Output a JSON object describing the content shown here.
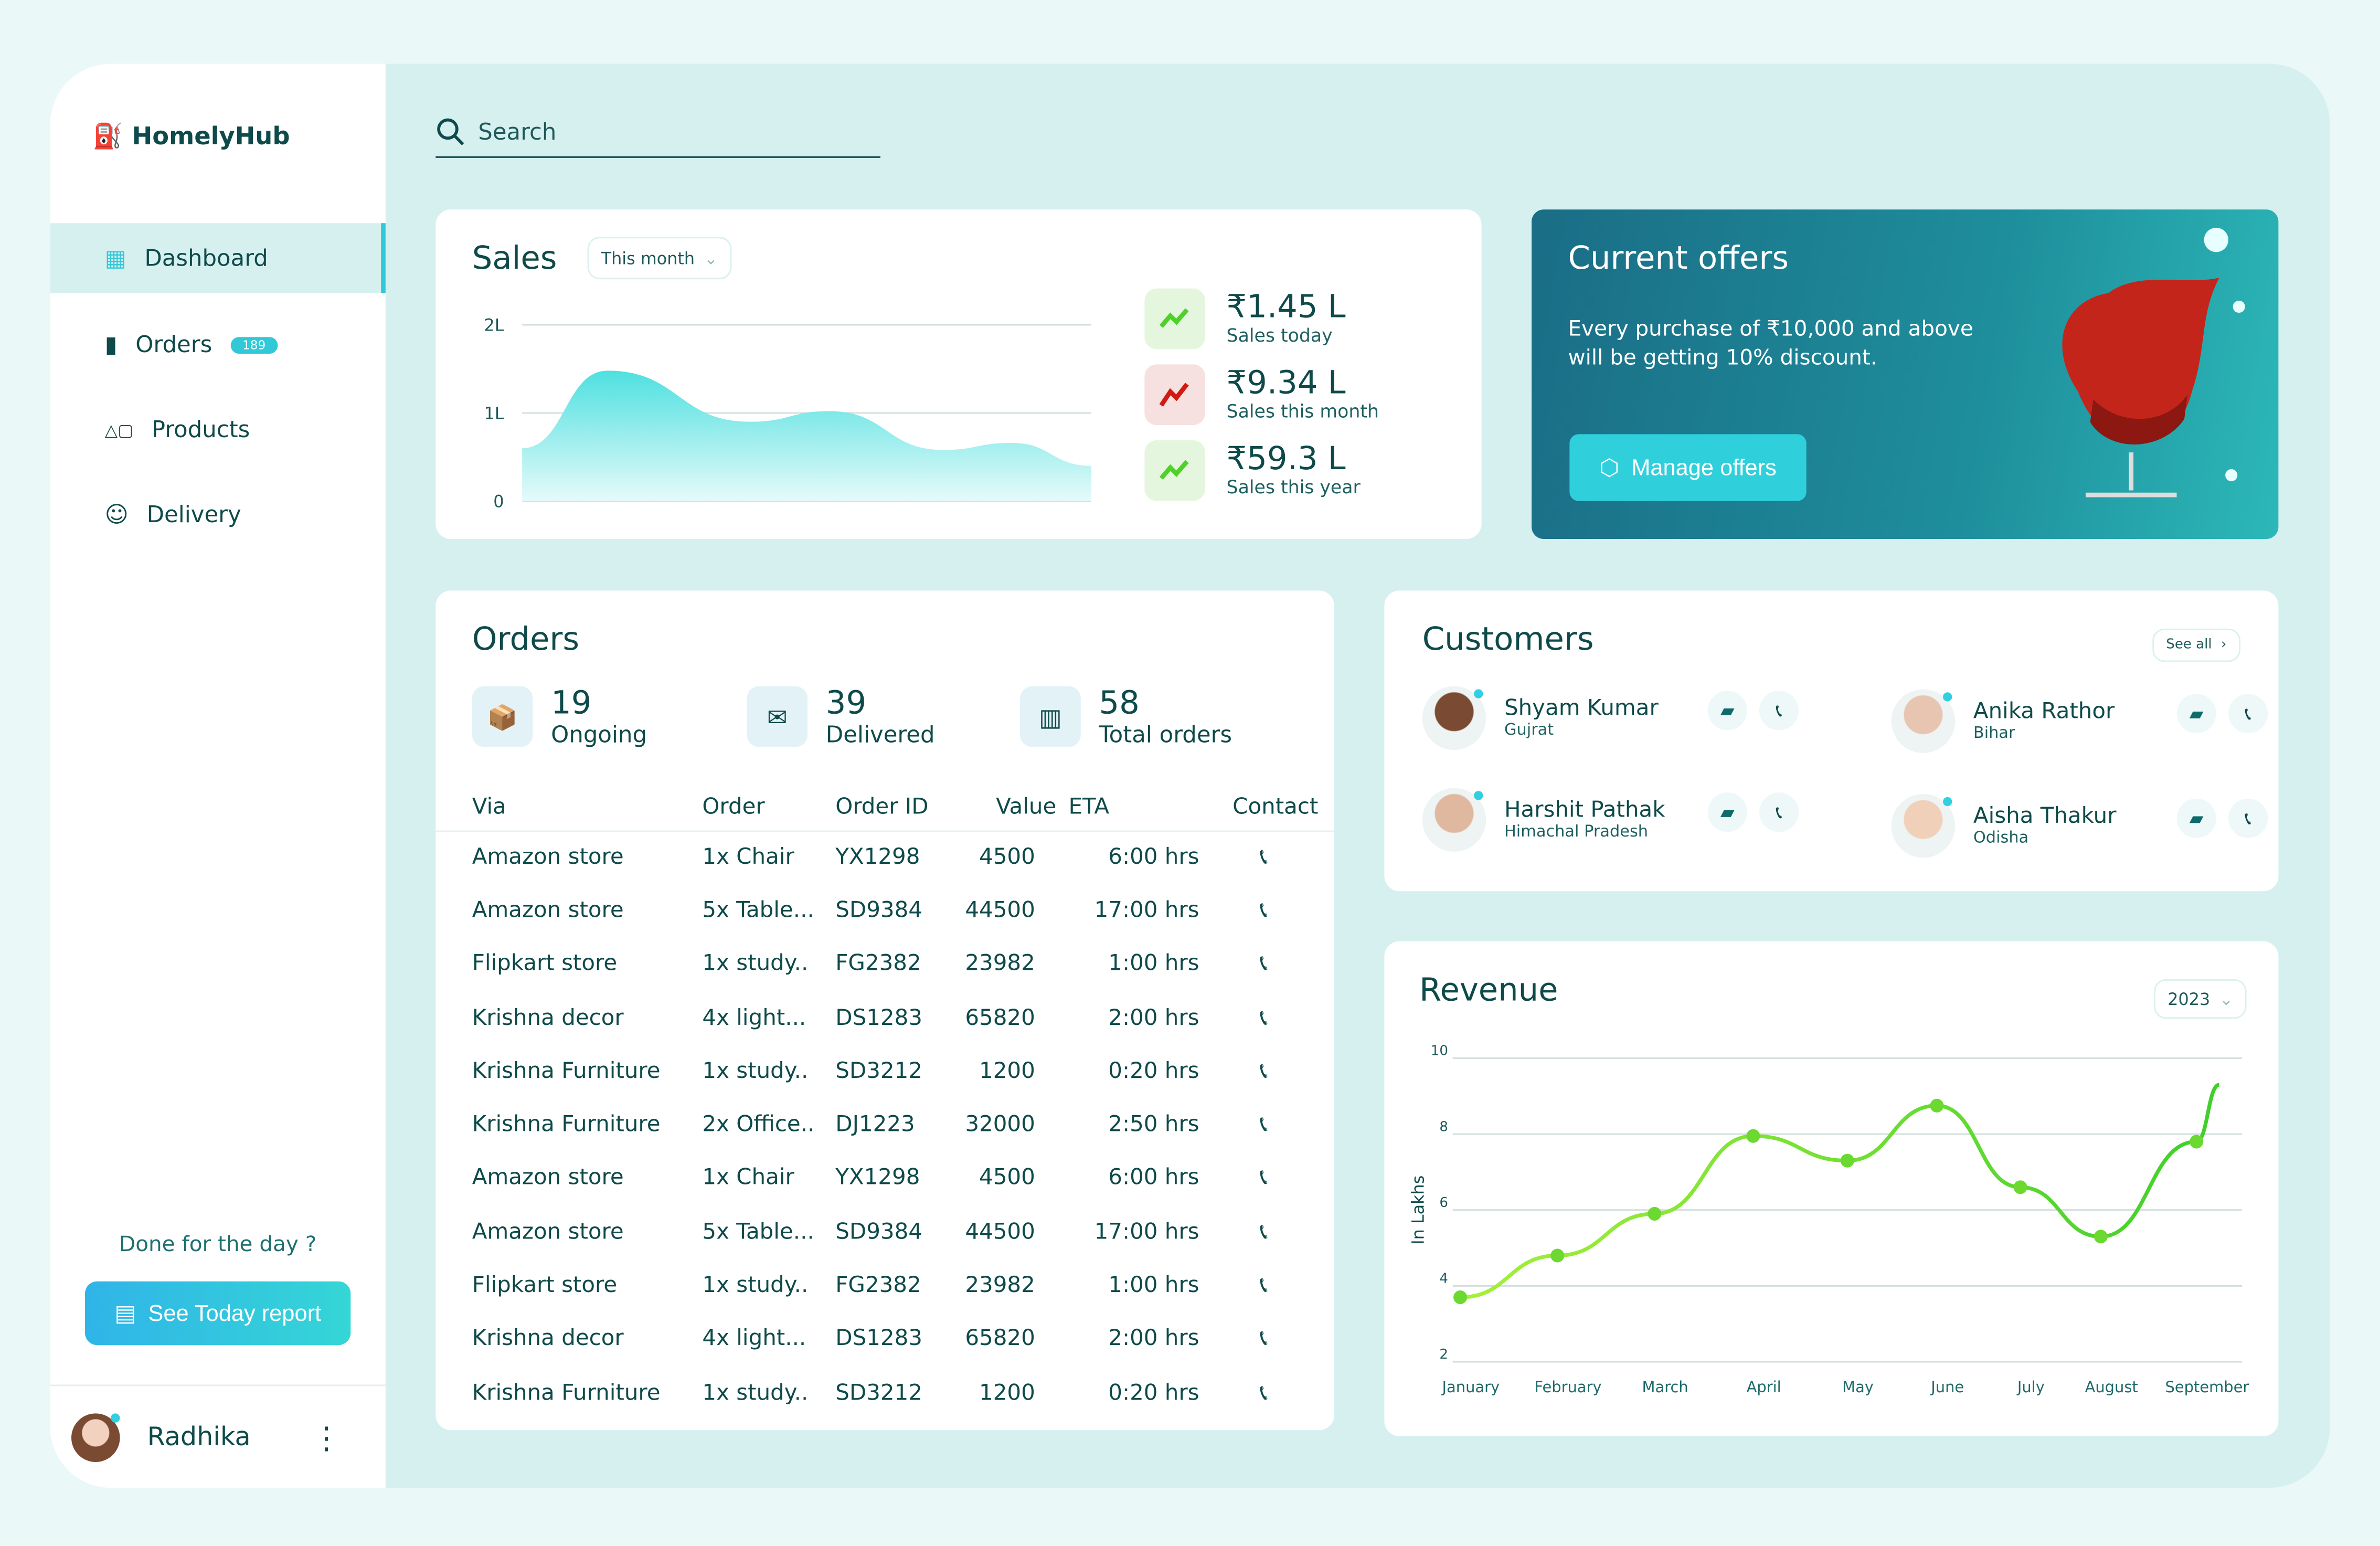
{
  "app": {
    "name": "HomelyHub"
  },
  "sidebar": {
    "items": [
      {
        "label": "Dashboard",
        "icon": "grid-icon",
        "active": true
      },
      {
        "label": "Orders",
        "icon": "clipboard-icon",
        "badge": "189"
      },
      {
        "label": "Products",
        "icon": "shapes-icon"
      },
      {
        "label": "Delivery",
        "icon": "smiley-icon"
      }
    ],
    "done_text": "Done for the day ?",
    "report_label": "See Today report",
    "user": "Radhika"
  },
  "search": {
    "placeholder": "Search"
  },
  "sales": {
    "title": "Sales",
    "period": "This month",
    "stats": [
      {
        "value": "₹1.45 L",
        "label": "Sales today",
        "trend": "up"
      },
      {
        "value": "₹9.34 L",
        "label": "Sales this month",
        "trend": "down"
      },
      {
        "value": "₹59.3 L",
        "label": "Sales this year",
        "trend": "up"
      }
    ]
  },
  "offers": {
    "title": "Current offers",
    "text": "Every purchase of ₹10,000 and above will be getting 10% discount.",
    "button": "Manage offers"
  },
  "orders": {
    "title": "Orders",
    "summary": [
      {
        "value": "19",
        "label": "Ongoing"
      },
      {
        "value": "39",
        "label": "Delivered"
      },
      {
        "value": "58",
        "label": "Total orders"
      }
    ],
    "columns": [
      "Via",
      "Order",
      "Order ID",
      "Value",
      "ETA",
      "Contact"
    ],
    "rows": [
      [
        "Amazon store",
        "1x Chair",
        "YX1298",
        "4500",
        "6:00 hrs"
      ],
      [
        "Amazon store",
        "5x Table...",
        "SD9384",
        "44500",
        "17:00 hrs"
      ],
      [
        "Flipkart store",
        "1x study..",
        "FG2382",
        "23982",
        "1:00 hrs"
      ],
      [
        "Krishna decor",
        "4x light...",
        "DS1283",
        "65820",
        "2:00 hrs"
      ],
      [
        "Krishna Furniture",
        "1x study..",
        "SD3212",
        "1200",
        "0:20 hrs"
      ],
      [
        "Krishna Furniture",
        "2x Office..",
        "DJ1223",
        "32000",
        "2:50 hrs"
      ],
      [
        "Amazon store",
        "1x Chair",
        "YX1298",
        "4500",
        "6:00 hrs"
      ],
      [
        "Amazon store",
        "5x Table...",
        "SD9384",
        "44500",
        "17:00 hrs"
      ],
      [
        "Flipkart store",
        "1x study..",
        "FG2382",
        "23982",
        "1:00 hrs"
      ],
      [
        "Krishna decor",
        "4x light...",
        "DS1283",
        "65820",
        "2:00 hrs"
      ],
      [
        "Krishna Furniture",
        "1x study..",
        "SD3212",
        "1200",
        "0:20 hrs"
      ]
    ]
  },
  "customers": {
    "title": "Customers",
    "see_all": "See all",
    "list": [
      {
        "name": "Shyam Kumar",
        "state": "Gujrat"
      },
      {
        "name": "Anika Rathor",
        "state": "Bihar"
      },
      {
        "name": "Harshit Pathak",
        "state": "Himachal Pradesh"
      },
      {
        "name": "Aisha Thakur",
        "state": "Odisha"
      }
    ]
  },
  "revenue": {
    "title": "Revenue",
    "year": "2023"
  },
  "chart_data": [
    {
      "type": "area",
      "title": "Sales",
      "yticks": [
        "0",
        "1L",
        "2L"
      ],
      "ylim": [
        0,
        2
      ],
      "x": [
        0,
        0.15,
        0.4,
        0.54,
        0.74,
        0.86,
        1
      ],
      "values": [
        0.6,
        1.48,
        0.9,
        1.02,
        0.58,
        0.66,
        0.4
      ],
      "color": "#4fe0e0"
    },
    {
      "type": "line",
      "title": "Revenue",
      "ylabel": "In Lakhs",
      "ylim": [
        2,
        10
      ],
      "yticks": [
        2,
        4,
        6,
        8,
        10
      ],
      "categories": [
        "January",
        "February",
        "March",
        "April",
        "May",
        "June",
        "July",
        "August",
        "September"
      ],
      "values": [
        3.7,
        4.8,
        5.9,
        7.95,
        7.3,
        8.75,
        6.6,
        5.3,
        7.8
      ],
      "grid": true,
      "color": "#4fd12a"
    }
  ]
}
